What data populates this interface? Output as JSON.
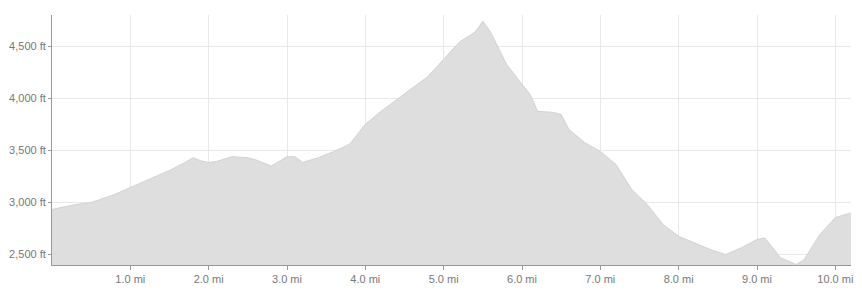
{
  "chart_data": {
    "type": "area",
    "x": [
      0,
      0.3,
      0.5,
      0.8,
      1.0,
      1.3,
      1.5,
      1.7,
      1.8,
      1.9,
      2.0,
      2.1,
      2.3,
      2.5,
      2.6,
      2.8,
      3.0,
      3.1,
      3.2,
      3.4,
      3.6,
      3.8,
      4.0,
      4.2,
      4.5,
      4.8,
      5.0,
      5.2,
      5.4,
      5.5,
      5.6,
      5.8,
      6.0,
      6.1,
      6.2,
      6.4,
      6.5,
      6.6,
      6.8,
      7.0,
      7.2,
      7.4,
      7.6,
      7.8,
      8.0,
      8.2,
      8.4,
      8.6,
      8.8,
      9.0,
      9.1,
      9.3,
      9.5,
      9.6,
      9.8,
      10.0,
      10.2
    ],
    "values": [
      2933,
      2980,
      3000,
      3077,
      3144,
      3240,
      3308,
      3385,
      3430,
      3400,
      3385,
      3394,
      3440,
      3430,
      3410,
      3350,
      3440,
      3440,
      3385,
      3430,
      3490,
      3560,
      3750,
      3875,
      4040,
      4210,
      4375,
      4540,
      4635,
      4740,
      4635,
      4330,
      4135,
      4040,
      3875,
      3865,
      3845,
      3700,
      3575,
      3490,
      3365,
      3125,
      2980,
      2790,
      2675,
      2615,
      2550,
      2500,
      2565,
      2645,
      2660,
      2470,
      2405,
      2450,
      2690,
      2855,
      2900
    ],
    "color": "#dedede",
    "xlim": [
      0,
      10.2
    ],
    "xticks": [
      {
        "value": 1,
        "label": "1.0 mi"
      },
      {
        "value": 2,
        "label": "2.0 mi"
      },
      {
        "value": 3,
        "label": "3.0 mi"
      },
      {
        "value": 4,
        "label": "4.0 mi"
      },
      {
        "value": 5,
        "label": "5.0 mi"
      },
      {
        "value": 6,
        "label": "6.0 mi"
      },
      {
        "value": 7,
        "label": "7.0 mi"
      },
      {
        "value": 8,
        "label": "8.0 mi"
      },
      {
        "value": 9,
        "label": "9.0 mi"
      },
      {
        "value": 10,
        "label": "10.0 mi"
      }
    ],
    "ylim": [
      2400,
      4800
    ],
    "yticks": [
      {
        "value": 2500,
        "label": "2,500 ft"
      },
      {
        "value": 3000,
        "label": "3,000 ft"
      },
      {
        "value": 3500,
        "label": "3,500 ft"
      },
      {
        "value": 4000,
        "label": "4,000 ft"
      },
      {
        "value": 4500,
        "label": "4,500 ft"
      }
    ],
    "grid": true
  }
}
